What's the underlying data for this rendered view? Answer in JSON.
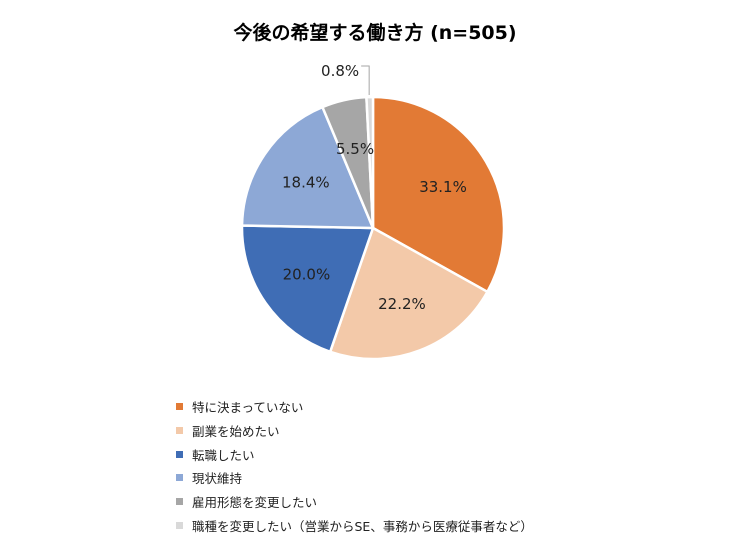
{
  "chart_data": {
    "type": "pie",
    "title": "今後の希望する働き方 (n=505)",
    "categories": [
      "特に決まっていない",
      "副業を始めたい",
      "転職したい",
      "現状維持",
      "雇用形態を変更したい",
      "職種を変更したい（営業からSE、事務から医療従事者など）"
    ],
    "values": [
      33.1,
      22.2,
      20.0,
      18.4,
      5.5,
      0.8
    ],
    "value_labels": [
      "33.1%",
      "22.2%",
      "20.0%",
      "18.4%",
      "5.5%",
      "0.8%"
    ],
    "colors": [
      "#E27A35",
      "#F3C9A9",
      "#3F6DB5",
      "#8DA8D6",
      "#A6A6A6",
      "#D9D9D9"
    ],
    "start_angle": "top",
    "direction": "clockwise",
    "legend_position": "bottom-left"
  }
}
